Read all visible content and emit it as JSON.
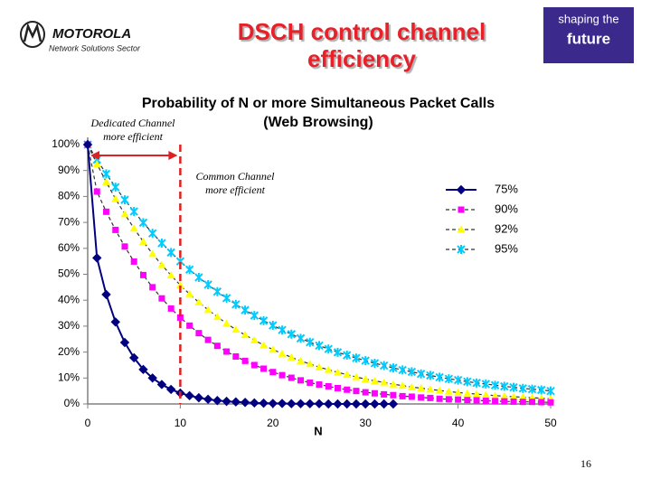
{
  "header": {
    "brand": "MOTOROLA",
    "sector": "Network Solutions Sector",
    "title": "DSCH control channel efficiency",
    "badge": [
      "shaping the",
      "future"
    ]
  },
  "chart_data": {
    "type": "line",
    "title": [
      "Probability of N or more Simultaneous Packet Calls",
      "(Web Browsing)"
    ],
    "xlabel": "N",
    "x": [
      0,
      1,
      2,
      3,
      4,
      5,
      6,
      7,
      8,
      9,
      10,
      11,
      12,
      13,
      14,
      15,
      16,
      17,
      18,
      19,
      20,
      21,
      22,
      23,
      24,
      25,
      26,
      27,
      28,
      29,
      30,
      31,
      32,
      33,
      34,
      35,
      36,
      37,
      38,
      39,
      40,
      41,
      42,
      43,
      44,
      45,
      46,
      47,
      48,
      49,
      50
    ],
    "xlim": [
      0,
      50
    ],
    "xticks": [
      0,
      10,
      20,
      30,
      40,
      50
    ],
    "ylim": [
      0,
      100
    ],
    "yticks": [
      {
        "value": 0,
        "label": "0%"
      },
      {
        "value": 10,
        "label": "10%"
      },
      {
        "value": 20,
        "label": "20%"
      },
      {
        "value": 30,
        "label": "30%"
      },
      {
        "value": 40,
        "label": "40%"
      },
      {
        "value": 50,
        "label": "50%"
      },
      {
        "value": 60,
        "label": "60%"
      },
      {
        "value": 70,
        "label": "70%"
      },
      {
        "value": 80,
        "label": "80%"
      },
      {
        "value": 90,
        "label": "90%"
      },
      {
        "value": 100,
        "label": "100%"
      }
    ],
    "legend": "upper right",
    "series": [
      {
        "name": "75%",
        "color": "#000080",
        "marker": "diamond",
        "values": [
          100,
          56.3,
          42.2,
          31.6,
          23.7,
          17.8,
          13.3,
          10.0,
          7.5,
          5.6,
          4.2,
          3.2,
          2.4,
          1.8,
          1.3,
          1.0,
          0.8,
          0.6,
          0.4,
          0.3,
          0.2,
          0.2,
          0.1,
          0.1,
          0.1,
          0.1,
          0,
          0,
          0,
          0,
          0,
          0,
          0,
          0,
          null,
          null,
          null,
          null,
          null,
          null,
          null,
          null,
          null,
          null,
          null,
          null,
          null,
          null,
          null,
          null,
          null
        ]
      },
      {
        "name": "90%",
        "color": "#ff00ff",
        "marker": "square",
        "values": [
          100,
          81.9,
          74.1,
          67.1,
          60.7,
          54.9,
          49.7,
          45.0,
          40.7,
          36.8,
          33.3,
          30.2,
          27.3,
          24.7,
          22.4,
          20.2,
          18.3,
          16.6,
          15.0,
          13.6,
          12.3,
          11.1,
          10.1,
          9.1,
          8.2,
          7.5,
          6.8,
          6.1,
          5.5,
          5.0,
          4.5,
          4.1,
          3.7,
          3.4,
          3.0,
          2.8,
          2.5,
          2.3,
          2.0,
          1.8,
          1.7,
          1.5,
          1.4,
          1.2,
          1.1,
          1.0,
          0.9,
          0.8,
          0.8,
          0.7,
          0.6
        ]
      },
      {
        "name": "92%",
        "color": "#ffff00",
        "marker": "triangle",
        "values": [
          100,
          92.5,
          85.6,
          79.1,
          73.2,
          67.7,
          62.6,
          57.9,
          53.6,
          49.6,
          45.8,
          42.4,
          39.2,
          36.3,
          33.6,
          31.0,
          28.7,
          26.6,
          24.6,
          22.7,
          21.0,
          19.4,
          18.0,
          16.6,
          15.4,
          14.2,
          13.2,
          12.2,
          11.3,
          10.4,
          9.6,
          8.9,
          8.3,
          7.6,
          7.1,
          6.5,
          6.1,
          5.6,
          5.2,
          4.8,
          4.4,
          4.1,
          3.8,
          3.5,
          3.2,
          3.0,
          2.8,
          2.6,
          2.4,
          2.2,
          2.0
        ]
      },
      {
        "name": "95%",
        "color": "#00ccff",
        "marker": "star",
        "values": [
          100,
          94.2,
          88.7,
          83.6,
          78.7,
          74.2,
          69.9,
          65.8,
          62.0,
          58.4,
          55.0,
          51.8,
          48.8,
          46.0,
          43.3,
          40.8,
          38.4,
          36.2,
          34.1,
          32.1,
          30.3,
          28.5,
          26.9,
          25.3,
          23.8,
          22.5,
          21.2,
          19.9,
          18.8,
          17.7,
          16.7,
          15.7,
          14.8,
          13.9,
          13.1,
          12.4,
          11.6,
          11.0,
          10.3,
          9.7,
          9.2,
          8.6,
          8.1,
          7.7,
          7.2,
          6.8,
          6.4,
          6.0,
          5.7,
          5.4,
          5.0
        ]
      }
    ],
    "reference_line": {
      "x": 10,
      "color": "#e02020"
    },
    "annotations": [
      {
        "text": [
          "Dedicated Channel",
          "more efficient"
        ]
      },
      {
        "text": [
          "Common Channel",
          "more efficient"
        ]
      }
    ]
  },
  "page_number": "16"
}
